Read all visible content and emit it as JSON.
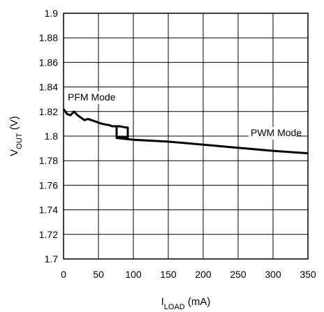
{
  "chart_data": {
    "type": "line",
    "xlabel": {
      "main": "I",
      "sub": "LOAD",
      "unit": " (mA)"
    },
    "ylabel": {
      "main": "V",
      "sub": "OUT",
      "unit": " (V)"
    },
    "xlim": [
      0,
      350
    ],
    "ylim": [
      1.7,
      1.9
    ],
    "xticks": [
      0,
      50,
      100,
      150,
      200,
      250,
      300,
      350
    ],
    "xtick_labels": [
      "0",
      "50",
      "100",
      "150",
      "200",
      "250",
      "300",
      "350"
    ],
    "yticks": [
      1.7,
      1.72,
      1.74,
      1.76,
      1.78,
      1.8,
      1.82,
      1.84,
      1.86,
      1.88,
      1.9
    ],
    "ytick_labels": [
      "1.7",
      "1.72",
      "1.74",
      "1.76",
      "1.78",
      "1.8",
      "1.82",
      "1.84",
      "1.86",
      "1.88",
      "1.9"
    ],
    "grid": true,
    "series": [
      {
        "color": "#000000",
        "x": [
          0,
          5,
          10,
          15,
          20,
          25,
          30,
          35,
          40,
          45,
          50,
          55,
          60,
          65,
          70,
          75,
          76,
          76,
          80,
          85,
          90,
          92,
          92,
          90,
          85,
          80,
          76,
          76,
          100,
          150,
          200,
          250,
          300,
          350
        ],
        "y": [
          1.822,
          1.818,
          1.817,
          1.82,
          1.817,
          1.815,
          1.813,
          1.814,
          1.813,
          1.812,
          1.811,
          1.81,
          1.8095,
          1.809,
          1.808,
          1.808,
          1.808,
          1.799,
          1.799,
          1.799,
          1.799,
          1.799,
          1.807,
          1.807,
          1.8075,
          1.808,
          1.808,
          1.7985,
          1.797,
          1.7955,
          1.793,
          1.7905,
          1.788,
          1.786
        ]
      }
    ],
    "annotations": [
      {
        "text": "PFM Mode",
        "x": 6,
        "y": 1.829
      },
      {
        "text": "PWM Mode",
        "x": 268,
        "y": 1.8
      }
    ]
  }
}
